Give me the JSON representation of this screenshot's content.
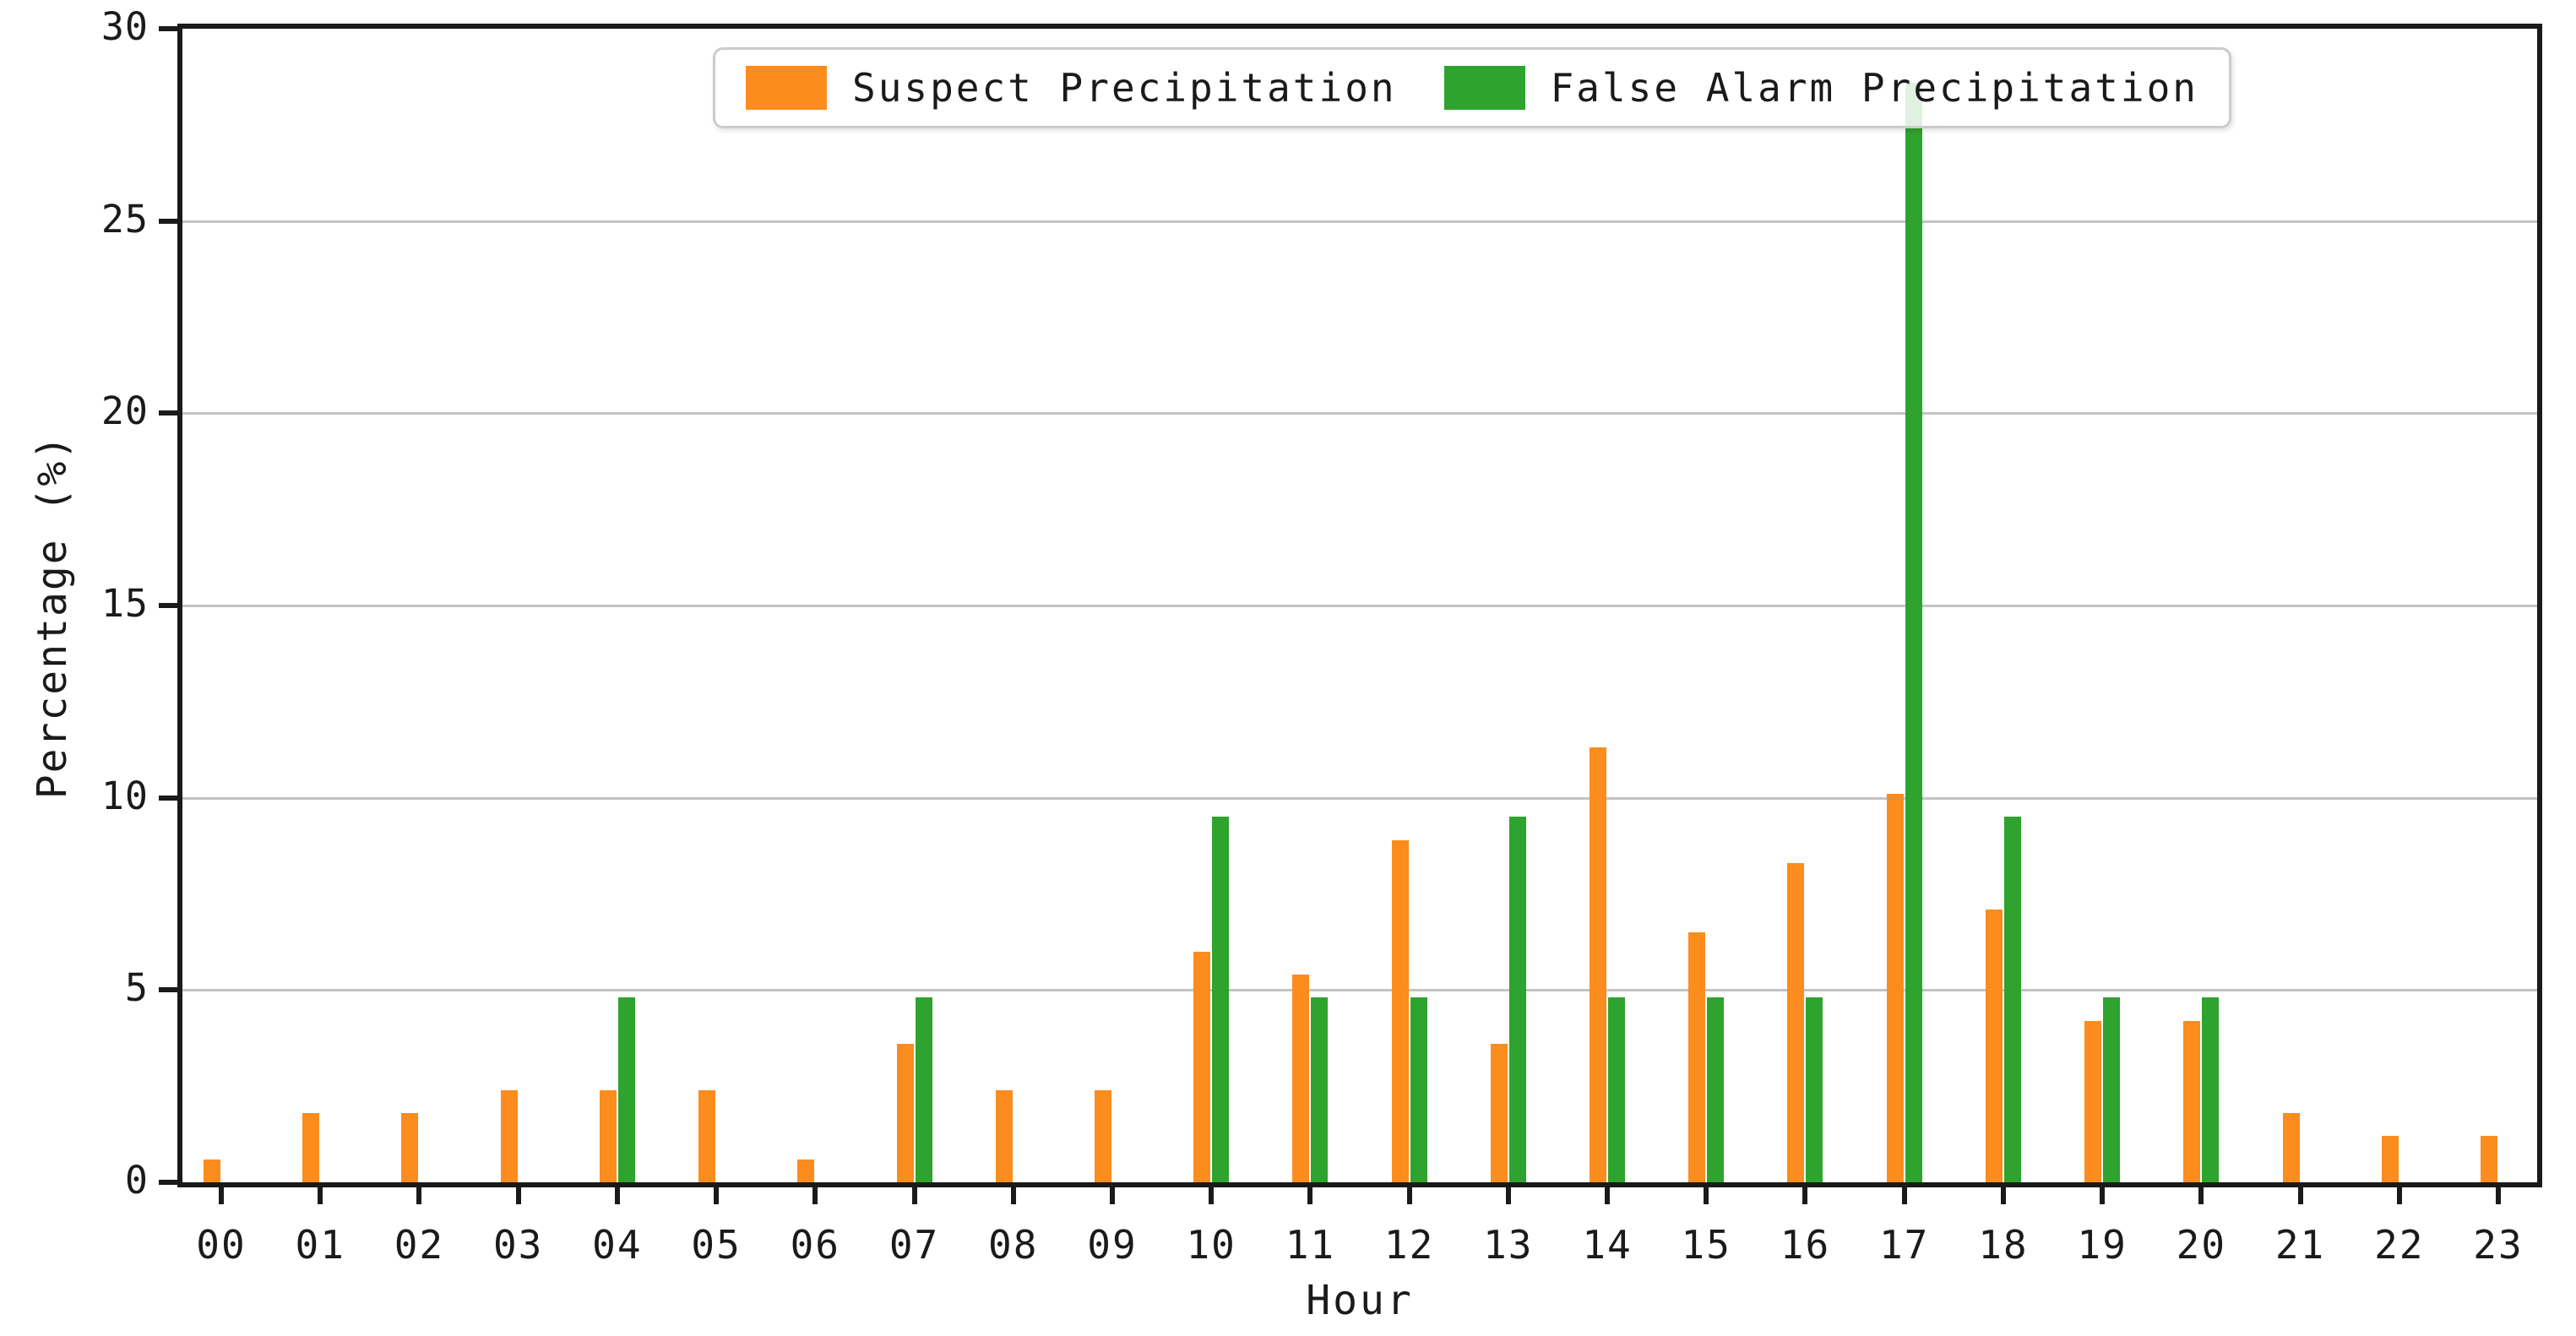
{
  "figure": {
    "x_axis_label": "Hour",
    "y_axis_label": "Percentage (%)"
  },
  "legend": {
    "items": [
      {
        "label": "Suspect Precipitation",
        "color": "#fb8c1d"
      },
      {
        "label": "False Alarm Precipitation",
        "color": "#2ea32e"
      }
    ]
  },
  "colors": {
    "suspect_orange": "#fb8c1d",
    "false_alarm_green": "#2ea32e",
    "gridline_gray": "#c3c3c3",
    "axis_black": "#1a1a1a"
  },
  "chart_data": {
    "type": "bar",
    "title": "",
    "xlabel": "Hour",
    "ylabel": "Percentage (%)",
    "categories": [
      "00",
      "01",
      "02",
      "03",
      "04",
      "05",
      "06",
      "07",
      "08",
      "09",
      "10",
      "11",
      "12",
      "13",
      "14",
      "15",
      "16",
      "17",
      "18",
      "19",
      "20",
      "21",
      "22",
      "23"
    ],
    "series": [
      {
        "name": "Suspect Precipitation",
        "color": "#fb8c1d",
        "values": [
          0.6,
          1.8,
          1.8,
          2.4,
          2.4,
          2.4,
          0.6,
          3.6,
          2.4,
          2.4,
          6.0,
          5.4,
          8.9,
          3.6,
          11.3,
          6.5,
          8.3,
          10.1,
          7.1,
          4.2,
          4.2,
          1.8,
          1.2,
          1.2
        ]
      },
      {
        "name": "False Alarm Precipitation",
        "color": "#2ea32e",
        "values": [
          0,
          0,
          0,
          0,
          4.8,
          0,
          0,
          4.8,
          0,
          0,
          9.5,
          4.8,
          4.8,
          9.5,
          4.8,
          4.8,
          4.8,
          28.6,
          9.5,
          4.8,
          4.8,
          0,
          0,
          0
        ]
      }
    ],
    "ylim": [
      0,
      30
    ],
    "yticks": [
      0,
      5,
      10,
      15,
      20,
      25,
      30
    ],
    "grid": true,
    "legend_position": "upper center inside plot"
  }
}
